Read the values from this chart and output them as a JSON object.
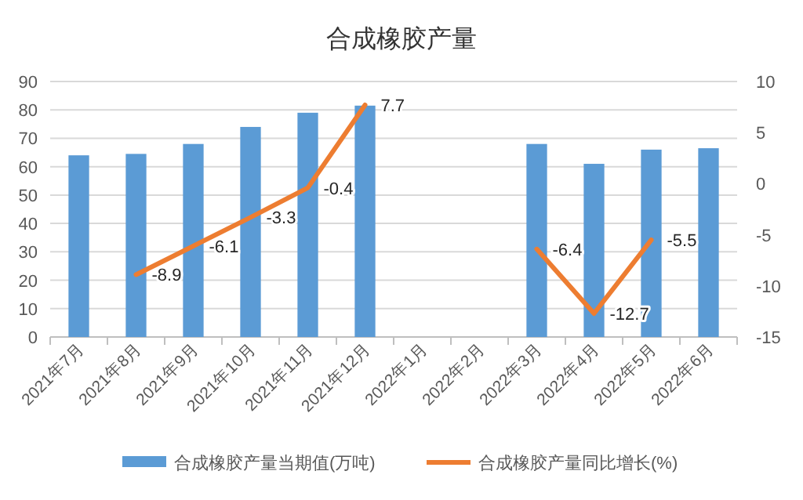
{
  "chart_data": {
    "type": "bar",
    "title": "合成橡胶产量",
    "categories": [
      "2021年7月",
      "2021年8月",
      "2021年9月",
      "2021年10月",
      "2021年11月",
      "2021年12月",
      "2022年1月",
      "2022年2月",
      "2022年3月",
      "2022年4月",
      "2022年5月",
      "2022年6月"
    ],
    "series": [
      {
        "name": "合成橡胶产量当期值(万吨)",
        "color": "#5b9bd5",
        "values": [
          64,
          64.5,
          68,
          74,
          79,
          81.5,
          null,
          null,
          68,
          61,
          66,
          66.5
        ]
      },
      {
        "name": "合成橡胶产量同比增长(%)",
        "color": "#ed7d31",
        "type": "line",
        "axis": "y2",
        "values": [
          null,
          -8.9,
          -6.1,
          -3.3,
          -0.4,
          7.7,
          null,
          null,
          -6.4,
          -12.7,
          -5.5,
          null
        ],
        "value_labels": [
          null,
          "-8.9",
          "-6.1",
          "-3.3",
          "-0.4",
          "7.7",
          null,
          null,
          "-6.4",
          "-12.7",
          "-5.5",
          null
        ]
      }
    ],
    "ylim": [
      0,
      90
    ],
    "yticks": [
      0,
      10,
      20,
      30,
      40,
      50,
      60,
      70,
      80,
      90
    ],
    "y2lim": [
      -15,
      10
    ],
    "y2ticks": [
      -15,
      -10,
      -5,
      0,
      5,
      10
    ],
    "grid": "y",
    "legend": "bottom"
  }
}
